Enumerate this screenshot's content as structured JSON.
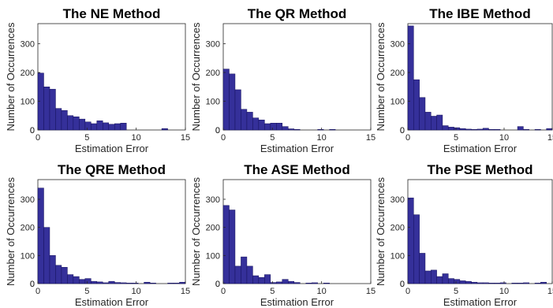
{
  "chart_data": [
    {
      "type": "bar",
      "title": "The NE Method",
      "xlabel": "Estimation Error",
      "ylabel": "Number of Occurrences",
      "xlim": [
        0,
        15
      ],
      "ylim": [
        0,
        370
      ],
      "xticks": [
        0,
        5,
        10,
        15
      ],
      "yticks": [
        0,
        100,
        200,
        300
      ],
      "bin_width": 0.6,
      "values": [
        198,
        150,
        142,
        75,
        68,
        50,
        46,
        38,
        28,
        22,
        32,
        25,
        20,
        22,
        24,
        0,
        0,
        0,
        0,
        0,
        0,
        5,
        0,
        0,
        0
      ]
    },
    {
      "type": "bar",
      "title": "The QR Method",
      "xlabel": "Estimation Error",
      "ylabel": "Number of Occurrences",
      "xlim": [
        0,
        15
      ],
      "ylim": [
        0,
        370
      ],
      "xticks": [
        0,
        5,
        10,
        15
      ],
      "yticks": [
        0,
        100,
        200,
        300
      ],
      "bin_width": 0.6,
      "values": [
        212,
        195,
        140,
        72,
        62,
        42,
        35,
        22,
        24,
        24,
        12,
        4,
        2,
        0,
        0,
        0,
        2,
        0,
        2,
        0,
        0,
        0,
        0,
        0,
        0
      ]
    },
    {
      "type": "bar",
      "title": "The IBE Method",
      "xlabel": "Estimation Error",
      "ylabel": "Number of Occurrences",
      "xlim": [
        0,
        15
      ],
      "ylim": [
        0,
        370
      ],
      "xticks": [
        0,
        5,
        10,
        15
      ],
      "yticks": [
        0,
        100,
        200,
        300
      ],
      "bin_width": 0.6,
      "values": [
        362,
        175,
        113,
        62,
        48,
        52,
        15,
        10,
        8,
        5,
        3,
        2,
        3,
        6,
        2,
        2,
        0,
        0,
        0,
        12,
        2,
        0,
        2,
        0,
        5
      ]
    },
    {
      "type": "bar",
      "title": "The QRE Method",
      "xlabel": "Estimation Error",
      "ylabel": "Number of Occurrences",
      "xlim": [
        0,
        15
      ],
      "ylim": [
        0,
        370
      ],
      "xticks": [
        0,
        5,
        10,
        15
      ],
      "yticks": [
        0,
        100,
        200,
        300
      ],
      "bin_width": 0.6,
      "values": [
        340,
        200,
        100,
        65,
        58,
        32,
        25,
        15,
        18,
        8,
        6,
        3,
        8,
        4,
        3,
        2,
        2,
        0,
        5,
        2,
        0,
        0,
        2,
        2,
        5
      ]
    },
    {
      "type": "bar",
      "title": "The ASE Method",
      "xlabel": "Estimation Error",
      "ylabel": "Number of Occurrences",
      "xlim": [
        0,
        15
      ],
      "ylim": [
        0,
        370
      ],
      "xticks": [
        0,
        5,
        10,
        15
      ],
      "yticks": [
        0,
        100,
        200,
        300
      ],
      "bin_width": 0.6,
      "values": [
        278,
        262,
        62,
        95,
        62,
        28,
        22,
        32,
        4,
        6,
        15,
        8,
        4,
        0,
        2,
        3,
        0,
        2,
        0,
        0,
        0,
        0,
        0,
        0,
        0
      ]
    },
    {
      "type": "bar",
      "title": "The PSE Method",
      "xlabel": "Estimation Error",
      "ylabel": "Number of Occurrences",
      "xlim": [
        0,
        15
      ],
      "ylim": [
        0,
        370
      ],
      "xticks": [
        0,
        5,
        10,
        15
      ],
      "yticks": [
        0,
        100,
        200,
        300
      ],
      "bin_width": 0.6,
      "values": [
        305,
        245,
        108,
        45,
        48,
        25,
        35,
        18,
        15,
        10,
        8,
        5,
        3,
        3,
        2,
        2,
        3,
        0,
        2,
        2,
        3,
        0,
        2,
        5,
        0
      ]
    }
  ],
  "colors": {
    "bar_fill": "#35309a",
    "bar_edge": "#14105a",
    "axis": "#262626"
  }
}
